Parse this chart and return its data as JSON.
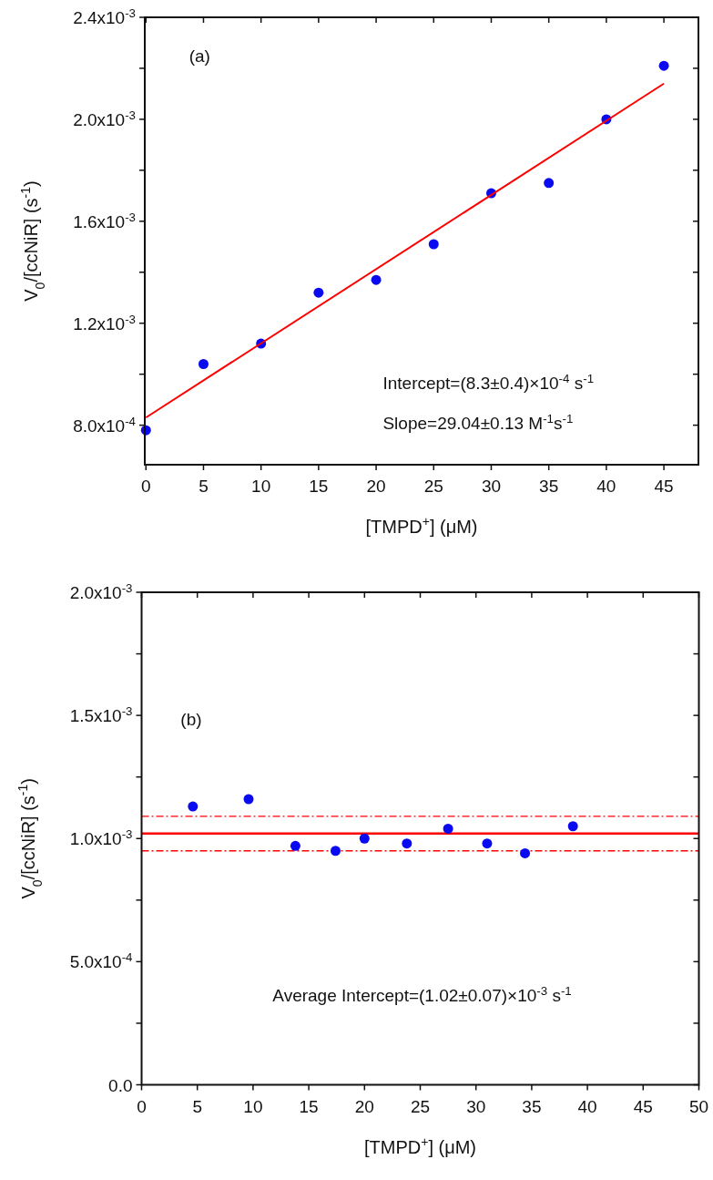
{
  "chart_data": [
    {
      "type": "scatter",
      "xlabel": "[TMPD$^{+}$] (μM)",
      "ylabel": "V$_{0}$/[ccNiR] (s$^{-1}$)",
      "marker": "circle",
      "grid": false,
      "xlim": [
        -0.1,
        48
      ],
      "xticks": [
        0,
        5,
        10,
        15,
        20,
        25,
        30,
        35,
        40,
        45
      ],
      "ylim": [
        0.000645,
        0.0024
      ],
      "yticks": [
        {
          "value": 0.0008,
          "label": "8.0x10$^{-4}$"
        },
        {
          "value": 0.001,
          "label": null
        },
        {
          "value": 0.0012,
          "label": "1.2x10$^{-3}$"
        },
        {
          "value": 0.0014,
          "label": null
        },
        {
          "value": 0.0016,
          "label": "1.6x10$^{-3}$"
        },
        {
          "value": 0.0018,
          "label": null
        },
        {
          "value": 0.002,
          "label": "2.0x10$^{-3}$"
        },
        {
          "value": 0.0022,
          "label": null
        },
        {
          "value": 0.0024,
          "label": "2.4x10$^{-3}$"
        }
      ],
      "series": [
        {
          "color": "#0a0af0",
          "x": [
            0,
            5,
            10,
            15,
            20,
            25,
            30,
            35,
            40,
            45
          ],
          "values": [
            0.00078,
            0.00104,
            0.00112,
            0.00132,
            0.00137,
            0.00151,
            0.00171,
            0.00175,
            0.002,
            0.00221
          ]
        },
        {
          "type": "line",
          "color": "#ff0000",
          "marker": "none",
          "x": [
            0,
            45
          ],
          "values": [
            0.00083,
            0.00214
          ]
        }
      ],
      "annotations": [
        "(a)",
        "Intercept=(8.3±0.4)×10$^{-4}$ s$^{-1}$",
        "Slope=29.04±0.13 M$^{-1}$s$^{-1}$"
      ]
    },
    {
      "type": "scatter",
      "xlabel": "[TMPD$^{+}$] (μM)",
      "ylabel": "V$_{0}$/[ccNiR] (s$^{-1}$)",
      "marker": "circle",
      "grid": false,
      "xlim": [
        0,
        50
      ],
      "xticks": [
        0,
        5,
        10,
        15,
        20,
        25,
        30,
        35,
        40,
        45,
        50
      ],
      "ylim": [
        0,
        0.002
      ],
      "yticks": [
        {
          "value": 0,
          "label": "0.0"
        },
        {
          "value": 0.00025,
          "label": null
        },
        {
          "value": 0.0005,
          "label": "5.0x10$^{-4}$"
        },
        {
          "value": 0.00075,
          "label": null
        },
        {
          "value": 0.001,
          "label": "1.0x10$^{-3}$"
        },
        {
          "value": 0.00125,
          "label": null
        },
        {
          "value": 0.0015,
          "label": "1.5x10$^{-3}$"
        },
        {
          "value": 0.00175,
          "label": null
        },
        {
          "value": 0.002,
          "label": "2.0x10$^{-3}$"
        }
      ],
      "series": [
        {
          "color": "#0a0af0",
          "x": [
            4.6,
            9.6,
            13.8,
            17.4,
            20,
            23.8,
            27.5,
            31,
            34.4,
            38.7
          ],
          "values": [
            0.00113,
            0.00116,
            0.00097,
            0.00095,
            0.001,
            0.00098,
            0.00104,
            0.00098,
            0.00094,
            0.00105
          ]
        }
      ],
      "ref_lines": [
        {
          "axis": "y",
          "value": 0.00102,
          "color": "#ff0000",
          "line_style": "solid"
        },
        {
          "axis": "y",
          "value": 0.00109,
          "color": "#ff0000",
          "line_style": "dashdot"
        },
        {
          "axis": "y",
          "value": 0.00095,
          "color": "#ff0000",
          "line_style": "dashdot"
        }
      ],
      "annotations": [
        "(b)",
        "Average Intercept=(1.02±0.07)×10$^{-3}$ s$^{-1}$"
      ]
    }
  ]
}
